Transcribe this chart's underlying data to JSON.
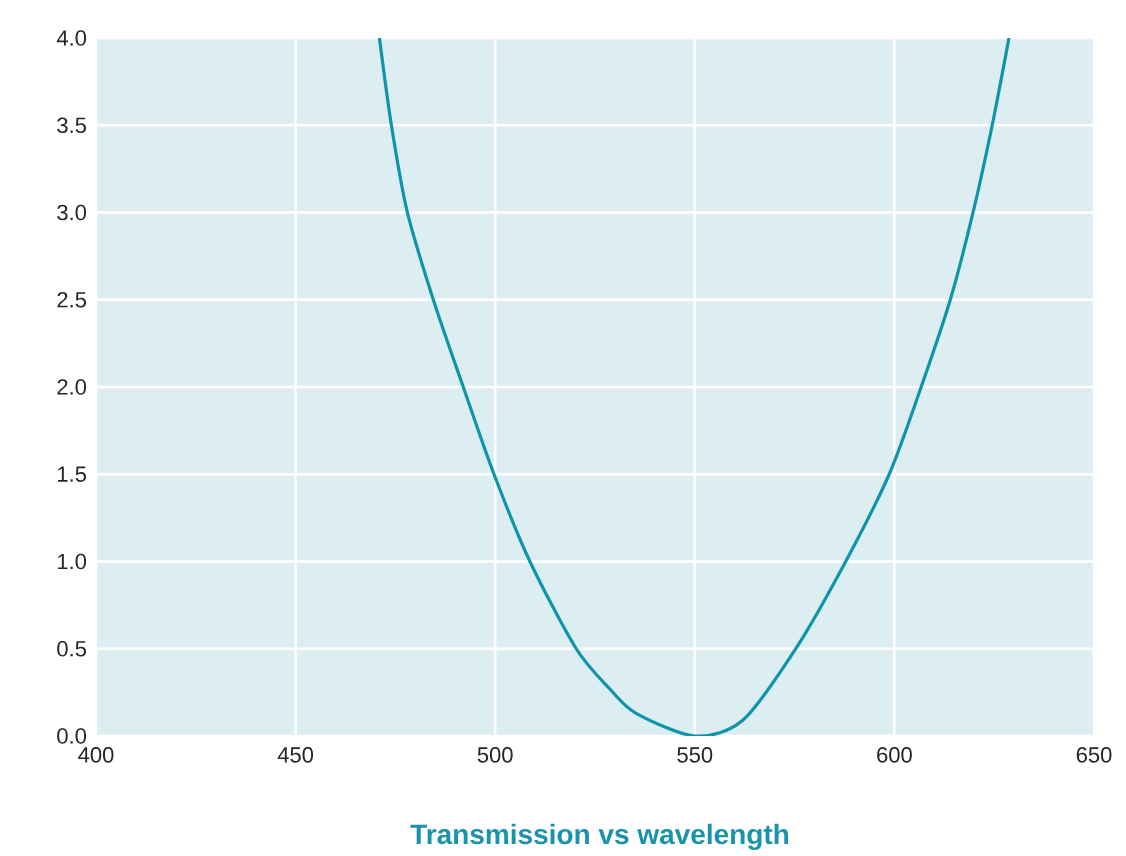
{
  "chart_data": {
    "type": "line",
    "title": "Transmission vs wavelength",
    "series": [
      {
        "color": "#0f95ab",
        "x": [
          471,
          474,
          478,
          484.5,
          492,
          499.7,
          508.7,
          520.3,
          528.7,
          535.3,
          550,
          562,
          575.3,
          587.8,
          598.7,
          606.7,
          614,
          619.7,
          624.5,
          628.7
        ],
        "values": [
          4.0,
          3.5,
          3.0,
          2.5,
          2.0,
          1.5,
          1.0,
          0.5,
          0.27,
          0.13,
          0,
          0.09,
          0.5,
          1.0,
          1.5,
          2.0,
          2.5,
          3.0,
          3.5,
          4.0
        ]
      }
    ],
    "xlim": [
      400,
      650
    ],
    "ylim": [
      0,
      4
    ],
    "xticks": [
      400,
      450,
      500,
      550,
      600,
      650
    ],
    "yticks": [
      {
        "value": 0,
        "label": "0.0"
      },
      {
        "value": 0.5,
        "label": "0.5"
      },
      {
        "value": 1,
        "label": "1.0"
      },
      {
        "value": 1.5,
        "label": "1.5"
      },
      {
        "value": 2,
        "label": "2.0"
      },
      {
        "value": 2.5,
        "label": "2.5"
      },
      {
        "value": 3,
        "label": "3.0"
      },
      {
        "value": 3.5,
        "label": "3.5"
      },
      {
        "value": 4,
        "label": "4.0"
      }
    ],
    "grid": true,
    "marker": "none",
    "line_style": "solid"
  }
}
